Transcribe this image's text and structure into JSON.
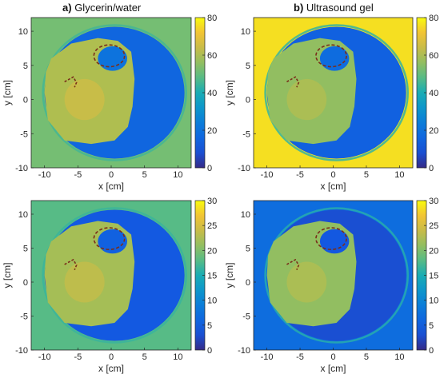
{
  "columns": [
    {
      "letter": "a)",
      "label": "Glycerin/water"
    },
    {
      "letter": "b)",
      "label": "Ultrasound gel"
    }
  ],
  "chart_data": [
    {
      "type": "heatmap",
      "column": "a) Glycerin/water",
      "xlabel": "x [cm]",
      "ylabel": "y [cm]",
      "xlim": [
        -12,
        12
      ],
      "ylim": [
        -10,
        12
      ],
      "xticks": [
        -10,
        -5,
        0,
        5,
        10
      ],
      "yticks": [
        -10,
        -5,
        0,
        5,
        10
      ],
      "colorbar": {
        "min": 0,
        "max": 80,
        "ticks": [
          0,
          20,
          40,
          60,
          80
        ]
      },
      "background_value": 52,
      "body_value": 16,
      "heart_value": 60,
      "colormap": "parula"
    },
    {
      "type": "heatmap",
      "column": "b) Ultrasound gel",
      "xlabel": "x [cm]",
      "ylabel": "y [cm]",
      "xlim": [
        -12,
        12
      ],
      "ylim": [
        -10,
        12
      ],
      "xticks": [
        -10,
        -5,
        0,
        5,
        10
      ],
      "yticks": [
        -10,
        -5,
        0,
        5,
        10
      ],
      "colorbar": {
        "min": 0,
        "max": 80,
        "ticks": [
          0,
          20,
          40,
          60,
          80
        ]
      },
      "background_value": 76,
      "body_value": 14,
      "heart_value": 56,
      "colormap": "parula"
    },
    {
      "type": "heatmap",
      "column": "a) Glycerin/water",
      "xlabel": "x [cm]",
      "ylabel": "y [cm]",
      "xlim": [
        -12,
        12
      ],
      "ylim": [
        -10,
        12
      ],
      "xticks": [
        -10,
        -5,
        0,
        5,
        10
      ],
      "yticks": [
        -10,
        -5,
        0,
        5,
        10
      ],
      "colorbar": {
        "min": 0,
        "max": 30,
        "ticks": [
          0,
          5,
          10,
          15,
          20,
          25,
          30
        ]
      },
      "background_value": 18,
      "body_value": 4,
      "heart_value": 22,
      "colormap": "parula"
    },
    {
      "type": "heatmap",
      "column": "b) Ultrasound gel",
      "xlabel": "x [cm]",
      "ylabel": "y [cm]",
      "xlim": [
        -12,
        12
      ],
      "ylim": [
        -10,
        12
      ],
      "xticks": [
        -10,
        -5,
        0,
        5,
        10
      ],
      "yticks": [
        -10,
        -5,
        0,
        5,
        10
      ],
      "colorbar": {
        "min": 0,
        "max": 30,
        "ticks": [
          0,
          5,
          10,
          15,
          20,
          25,
          30
        ]
      },
      "background_value": 7,
      "body_value": 3,
      "heart_value": 21,
      "colormap": "parula"
    }
  ]
}
